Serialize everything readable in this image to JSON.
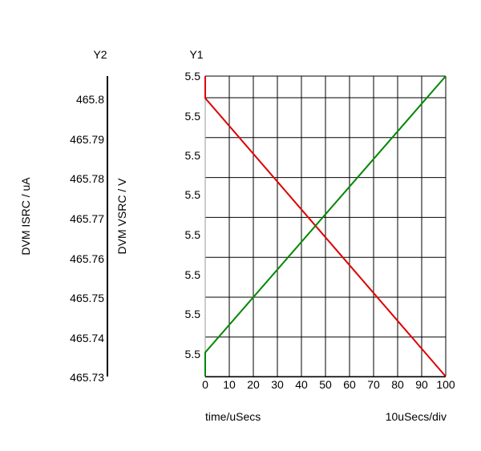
{
  "chart_data": {
    "type": "line",
    "y1_axis_label": "Y1",
    "y2_axis_label": "Y2",
    "y1_title": "DVM VSRC / V",
    "y2_title": "DVM ISRC / uA",
    "xlabel": "time/uSecs",
    "x_scale_note": "10uSecs/div",
    "xlim": [
      0,
      100
    ],
    "x_ticks": [
      "0",
      "10",
      "20",
      "30",
      "40",
      "50",
      "60",
      "70",
      "80",
      "90",
      "100"
    ],
    "y1_ticks": [
      "5.5",
      "5.5",
      "5.5",
      "5.5",
      "5.5",
      "5.5",
      "5.5",
      "5.5"
    ],
    "y2_ticks": [
      "465.8",
      "465.79",
      "465.78",
      "465.77",
      "465.76",
      "465.75",
      "465.74",
      "465.73"
    ],
    "y2_range": [
      465.73,
      465.8
    ],
    "y1_range_fraction": [
      0,
      7.5
    ],
    "grid": true,
    "series": [
      {
        "color": "#dd0000",
        "x": [
          0,
          0,
          100
        ],
        "y_frac": [
          7.5,
          6.95,
          0
        ]
      },
      {
        "color": "#008800",
        "x": [
          0,
          0,
          100
        ],
        "y_frac": [
          0,
          0.6,
          7.5
        ]
      }
    ]
  }
}
